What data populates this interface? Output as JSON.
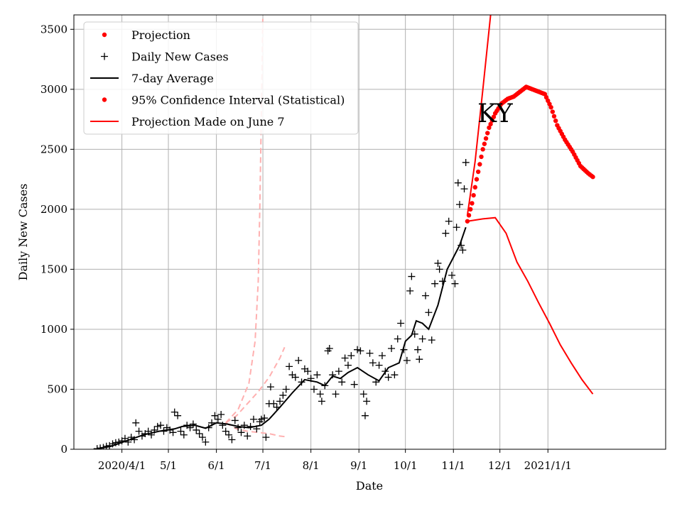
{
  "chart_data": {
    "type": "line",
    "annotation": "KY",
    "xlabel": "Date",
    "ylabel": "Daily New Cases",
    "xlim": [
      "2020-03-01",
      "2021-03-18"
    ],
    "ylim": [
      0,
      3620
    ],
    "grid": true,
    "legend_position": "top-left",
    "x_ticks": [
      {
        "date": "2020-04-01",
        "label": "2020/4/1"
      },
      {
        "date": "2020-05-01",
        "label": "5/1"
      },
      {
        "date": "2020-06-01",
        "label": "6/1"
      },
      {
        "date": "2020-07-01",
        "label": "7/1"
      },
      {
        "date": "2020-08-01",
        "label": "8/1"
      },
      {
        "date": "2020-09-01",
        "label": "9/1"
      },
      {
        "date": "2020-10-01",
        "label": "10/1"
      },
      {
        "date": "2020-11-01",
        "label": "11/1"
      },
      {
        "date": "2020-12-01",
        "label": "12/1"
      },
      {
        "date": "2021-01-01",
        "label": "2021/1/1"
      }
    ],
    "y_ticks": [
      0,
      500,
      1000,
      1500,
      2000,
      2500,
      3000,
      3500
    ],
    "legend": [
      {
        "key": "projection",
        "label": "Projection",
        "marker": "dot",
        "color": "#ff0000"
      },
      {
        "key": "daily",
        "label": "Daily New Cases",
        "marker": "plus",
        "color": "#000000"
      },
      {
        "key": "avg",
        "label": "7-day Average",
        "marker": "line",
        "color": "#000000"
      },
      {
        "key": "ci",
        "label": "95% Confidence Interval (Statistical)",
        "marker": "dot",
        "color": "#ff0000"
      },
      {
        "key": "june",
        "label": "Projection Made on June 7",
        "marker": "line",
        "color": "#ff0000"
      }
    ],
    "series": [
      {
        "key": "daily",
        "name": "Daily New Cases",
        "style": "plus",
        "color": "#000000",
        "points": [
          [
            "2020-03-16",
            5
          ],
          [
            "2020-03-18",
            10
          ],
          [
            "2020-03-20",
            15
          ],
          [
            "2020-03-22",
            25
          ],
          [
            "2020-03-24",
            30
          ],
          [
            "2020-03-26",
            45
          ],
          [
            "2020-03-28",
            55
          ],
          [
            "2020-03-30",
            60
          ],
          [
            "2020-04-01",
            70
          ],
          [
            "2020-04-03",
            90
          ],
          [
            "2020-04-05",
            60
          ],
          [
            "2020-04-07",
            100
          ],
          [
            "2020-04-09",
            80
          ],
          [
            "2020-04-10",
            220
          ],
          [
            "2020-04-12",
            150
          ],
          [
            "2020-04-14",
            110
          ],
          [
            "2020-04-16",
            130
          ],
          [
            "2020-04-18",
            150
          ],
          [
            "2020-04-20",
            120
          ],
          [
            "2020-04-22",
            160
          ],
          [
            "2020-04-24",
            190
          ],
          [
            "2020-04-26",
            200
          ],
          [
            "2020-04-28",
            150
          ],
          [
            "2020-04-30",
            180
          ],
          [
            "2020-05-02",
            160
          ],
          [
            "2020-05-04",
            140
          ],
          [
            "2020-05-05",
            310
          ],
          [
            "2020-05-07",
            280
          ],
          [
            "2020-05-09",
            150
          ],
          [
            "2020-05-11",
            120
          ],
          [
            "2020-05-13",
            200
          ],
          [
            "2020-05-15",
            180
          ],
          [
            "2020-05-17",
            210
          ],
          [
            "2020-05-19",
            160
          ],
          [
            "2020-05-21",
            130
          ],
          [
            "2020-05-23",
            100
          ],
          [
            "2020-05-25",
            60
          ],
          [
            "2020-05-27",
            180
          ],
          [
            "2020-05-29",
            220
          ],
          [
            "2020-05-31",
            280
          ],
          [
            "2020-06-02",
            250
          ],
          [
            "2020-06-04",
            290
          ],
          [
            "2020-06-05",
            200
          ],
          [
            "2020-06-07",
            150
          ],
          [
            "2020-06-09",
            120
          ],
          [
            "2020-06-11",
            80
          ],
          [
            "2020-06-13",
            240
          ],
          [
            "2020-06-15",
            180
          ],
          [
            "2020-06-17",
            140
          ],
          [
            "2020-06-19",
            200
          ],
          [
            "2020-06-21",
            110
          ],
          [
            "2020-06-23",
            190
          ],
          [
            "2020-06-25",
            250
          ],
          [
            "2020-06-27",
            170
          ],
          [
            "2020-06-29",
            230
          ],
          [
            "2020-06-30",
            250
          ],
          [
            "2020-07-02",
            260
          ],
          [
            "2020-07-03",
            100
          ],
          [
            "2020-07-05",
            380
          ],
          [
            "2020-07-06",
            520
          ],
          [
            "2020-07-08",
            380
          ],
          [
            "2020-07-10",
            350
          ],
          [
            "2020-07-12",
            400
          ],
          [
            "2020-07-14",
            450
          ],
          [
            "2020-07-16",
            500
          ],
          [
            "2020-07-18",
            690
          ],
          [
            "2020-07-20",
            620
          ],
          [
            "2020-07-22",
            600
          ],
          [
            "2020-07-24",
            740
          ],
          [
            "2020-07-26",
            560
          ],
          [
            "2020-07-28",
            670
          ],
          [
            "2020-07-30",
            650
          ],
          [
            "2020-08-01",
            590
          ],
          [
            "2020-08-03",
            500
          ],
          [
            "2020-08-05",
            620
          ],
          [
            "2020-08-07",
            460
          ],
          [
            "2020-08-08",
            400
          ],
          [
            "2020-08-10",
            530
          ],
          [
            "2020-08-12",
            820
          ],
          [
            "2020-08-13",
            840
          ],
          [
            "2020-08-15",
            620
          ],
          [
            "2020-08-17",
            460
          ],
          [
            "2020-08-19",
            650
          ],
          [
            "2020-08-21",
            560
          ],
          [
            "2020-08-23",
            760
          ],
          [
            "2020-08-25",
            700
          ],
          [
            "2020-08-27",
            780
          ],
          [
            "2020-08-29",
            540
          ],
          [
            "2020-08-31",
            830
          ],
          [
            "2020-09-02",
            820
          ],
          [
            "2020-09-04",
            460
          ],
          [
            "2020-09-05",
            280
          ],
          [
            "2020-09-06",
            400
          ],
          [
            "2020-09-08",
            800
          ],
          [
            "2020-09-10",
            720
          ],
          [
            "2020-09-12",
            560
          ],
          [
            "2020-09-14",
            700
          ],
          [
            "2020-09-16",
            780
          ],
          [
            "2020-09-18",
            650
          ],
          [
            "2020-09-20",
            600
          ],
          [
            "2020-09-22",
            840
          ],
          [
            "2020-09-24",
            620
          ],
          [
            "2020-09-26",
            920
          ],
          [
            "2020-09-28",
            1050
          ],
          [
            "2020-09-30",
            830
          ],
          [
            "2020-10-02",
            740
          ],
          [
            "2020-10-04",
            1320
          ],
          [
            "2020-10-05",
            1440
          ],
          [
            "2020-10-07",
            960
          ],
          [
            "2020-10-09",
            830
          ],
          [
            "2020-10-10",
            750
          ],
          [
            "2020-10-12",
            920
          ],
          [
            "2020-10-14",
            1280
          ],
          [
            "2020-10-16",
            1140
          ],
          [
            "2020-10-18",
            910
          ],
          [
            "2020-10-20",
            1380
          ],
          [
            "2020-10-22",
            1550
          ],
          [
            "2020-10-23",
            1500
          ],
          [
            "2020-10-25",
            1400
          ],
          [
            "2020-10-27",
            1800
          ],
          [
            "2020-10-29",
            1900
          ],
          [
            "2020-10-31",
            1450
          ],
          [
            "2020-11-02",
            1380
          ],
          [
            "2020-11-03",
            1850
          ],
          [
            "2020-11-04",
            2220
          ],
          [
            "2020-11-05",
            2040
          ],
          [
            "2020-11-06",
            1700
          ],
          [
            "2020-11-07",
            1660
          ],
          [
            "2020-11-08",
            2170
          ],
          [
            "2020-11-09",
            2390
          ]
        ]
      },
      {
        "key": "avg",
        "name": "7-day Average",
        "style": "line",
        "color": "#000000",
        "points": [
          [
            "2020-03-15",
            0
          ],
          [
            "2020-03-25",
            25
          ],
          [
            "2020-04-05",
            75
          ],
          [
            "2020-04-15",
            120
          ],
          [
            "2020-04-25",
            150
          ],
          [
            "2020-05-05",
            170
          ],
          [
            "2020-05-10",
            190
          ],
          [
            "2020-05-18",
            200
          ],
          [
            "2020-05-25",
            175
          ],
          [
            "2020-06-01",
            220
          ],
          [
            "2020-06-08",
            210
          ],
          [
            "2020-06-15",
            190
          ],
          [
            "2020-06-22",
            180
          ],
          [
            "2020-06-30",
            200
          ],
          [
            "2020-07-05",
            250
          ],
          [
            "2020-07-12",
            350
          ],
          [
            "2020-07-20",
            470
          ],
          [
            "2020-07-28",
            580
          ],
          [
            "2020-08-05",
            560
          ],
          [
            "2020-08-10",
            530
          ],
          [
            "2020-08-15",
            610
          ],
          [
            "2020-08-20",
            590
          ],
          [
            "2020-08-25",
            640
          ],
          [
            "2020-08-31",
            680
          ],
          [
            "2020-09-07",
            620
          ],
          [
            "2020-09-14",
            570
          ],
          [
            "2020-09-20",
            680
          ],
          [
            "2020-09-27",
            720
          ],
          [
            "2020-10-01",
            900
          ],
          [
            "2020-10-05",
            950
          ],
          [
            "2020-10-08",
            1070
          ],
          [
            "2020-10-12",
            1050
          ],
          [
            "2020-10-16",
            1000
          ],
          [
            "2020-10-22",
            1200
          ],
          [
            "2020-10-28",
            1500
          ],
          [
            "2020-11-01",
            1600
          ],
          [
            "2020-11-05",
            1700
          ],
          [
            "2020-11-09",
            1850
          ]
        ]
      },
      {
        "key": "projection",
        "name": "Projection",
        "style": "dots",
        "color": "#ff0000",
        "points": [
          [
            "2020-11-10",
            1900
          ],
          [
            "2020-11-13",
            2050
          ],
          [
            "2020-11-16",
            2250
          ],
          [
            "2020-11-20",
            2500
          ],
          [
            "2020-11-24",
            2680
          ],
          [
            "2020-11-28",
            2800
          ],
          [
            "2020-12-02",
            2880
          ],
          [
            "2020-12-06",
            2920
          ],
          [
            "2020-12-10",
            2940
          ],
          [
            "2020-12-14",
            2980
          ],
          [
            "2020-12-18",
            3020
          ],
          [
            "2020-12-22",
            3000
          ],
          [
            "2020-12-26",
            2980
          ],
          [
            "2020-12-30",
            2960
          ],
          [
            "2021-01-03",
            2850
          ],
          [
            "2021-01-07",
            2700
          ],
          [
            "2021-01-12",
            2580
          ],
          [
            "2021-01-17",
            2480
          ],
          [
            "2021-01-22",
            2360
          ],
          [
            "2021-01-27",
            2300
          ],
          [
            "2021-01-30",
            2270
          ]
        ]
      },
      {
        "key": "ci_upper",
        "name": "",
        "style": "line",
        "color": "#ff0000",
        "points": [
          [
            "2020-11-10",
            1950
          ],
          [
            "2020-11-15",
            2400
          ],
          [
            "2020-11-20",
            3000
          ],
          [
            "2020-11-25",
            3620
          ]
        ]
      },
      {
        "key": "ci_lower",
        "name": "",
        "style": "line",
        "color": "#ff0000",
        "points": [
          [
            "2020-11-10",
            1900
          ],
          [
            "2020-11-20",
            1920
          ],
          [
            "2020-11-28",
            1930
          ],
          [
            "2020-12-05",
            1800
          ],
          [
            "2020-12-12",
            1560
          ],
          [
            "2020-12-19",
            1400
          ],
          [
            "2020-12-26",
            1220
          ],
          [
            "2021-01-02",
            1050
          ],
          [
            "2021-01-09",
            870
          ],
          [
            "2021-01-16",
            720
          ],
          [
            "2021-01-23",
            580
          ],
          [
            "2021-01-30",
            460
          ]
        ]
      },
      {
        "key": "june_upper",
        "name": "",
        "style": "dashed",
        "color": "#ffb0b0",
        "points": [
          [
            "2020-06-07",
            220
          ],
          [
            "2020-06-15",
            330
          ],
          [
            "2020-06-22",
            550
          ],
          [
            "2020-06-26",
            900
          ],
          [
            "2020-06-28",
            1400
          ],
          [
            "2020-06-29",
            2000
          ],
          [
            "2020-06-30",
            2800
          ],
          [
            "2020-07-01",
            3620
          ]
        ]
      },
      {
        "key": "june_mid",
        "name": "",
        "style": "dashed",
        "color": "#ffb0b0",
        "points": [
          [
            "2020-06-07",
            220
          ],
          [
            "2020-06-14",
            280
          ],
          [
            "2020-06-21",
            380
          ],
          [
            "2020-06-28",
            480
          ],
          [
            "2020-07-05",
            600
          ],
          [
            "2020-07-12",
            760
          ],
          [
            "2020-07-15",
            850
          ]
        ]
      },
      {
        "key": "june_lower",
        "name": "",
        "style": "dashed",
        "color": "#ffb0b0",
        "points": [
          [
            "2020-06-07",
            220
          ],
          [
            "2020-06-14",
            170
          ],
          [
            "2020-06-21",
            150
          ],
          [
            "2020-06-28",
            140
          ],
          [
            "2020-07-05",
            130
          ],
          [
            "2020-07-12",
            110
          ],
          [
            "2020-07-15",
            105
          ]
        ]
      }
    ]
  }
}
